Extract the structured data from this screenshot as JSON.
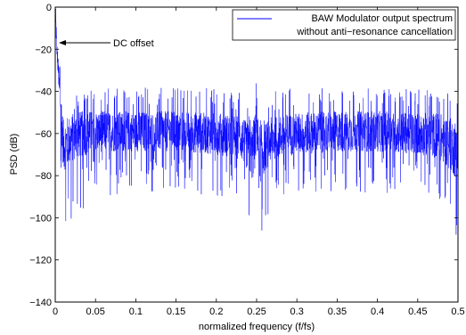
{
  "chart_data": {
    "type": "line",
    "title": "",
    "xlabel": "normalized frequency (f/fs)",
    "ylabel": "PSD (dB)",
    "xlim": [
      0,
      0.5
    ],
    "ylim": [
      -140,
      0
    ],
    "x_ticks": [
      0,
      0.05,
      0.1,
      0.15,
      0.2,
      0.25,
      0.3,
      0.35,
      0.4,
      0.45,
      0.5
    ],
    "y_ticks": [
      0,
      -20,
      -40,
      -60,
      -80,
      -100,
      -120,
      -140
    ],
    "grid": false,
    "legend_position": "top-right",
    "series": [
      {
        "name": "BAW Modulator output spectrum without anti−resonance cancellation",
        "color": "#0000ff",
        "x": [
          0,
          0.002,
          0.01,
          0.025,
          0.05,
          0.1,
          0.15,
          0.2,
          0.23,
          0.24,
          0.245,
          0.248,
          0.25,
          0.252,
          0.255,
          0.26,
          0.27,
          0.3,
          0.35,
          0.4,
          0.45,
          0.475,
          0.49,
          0.5
        ],
        "upper": [
          0,
          -5,
          -45,
          -40,
          -38,
          -38,
          -37,
          -38,
          -40,
          -45,
          -50,
          -40,
          -29,
          -40,
          -50,
          -45,
          -40,
          -38,
          -37,
          -37,
          -38,
          -37,
          -40,
          -45
        ],
        "median": [
          0,
          -20,
          -67,
          -62,
          -60,
          -60,
          -60,
          -61,
          -63,
          -68,
          -72,
          -65,
          -55,
          -65,
          -72,
          -68,
          -63,
          -61,
          -60,
          -60,
          -61,
          -62,
          -66,
          -70
        ],
        "lower": [
          0,
          -25,
          -110,
          -100,
          -90,
          -88,
          -88,
          -90,
          -95,
          -105,
          -115,
          -110,
          -95,
          -110,
          -118,
          -105,
          -95,
          -90,
          -88,
          -88,
          -90,
          -95,
          -105,
          -122
        ]
      }
    ],
    "annotations": [
      {
        "text": "DC offset",
        "x": 0.005,
        "y": -13
      }
    ]
  },
  "legend": {
    "line1": "BAW Modulator output spectrum",
    "line2": "without anti−resonance cancellation"
  },
  "colors": {
    "series": "#0000ff",
    "axes": "#000000"
  }
}
